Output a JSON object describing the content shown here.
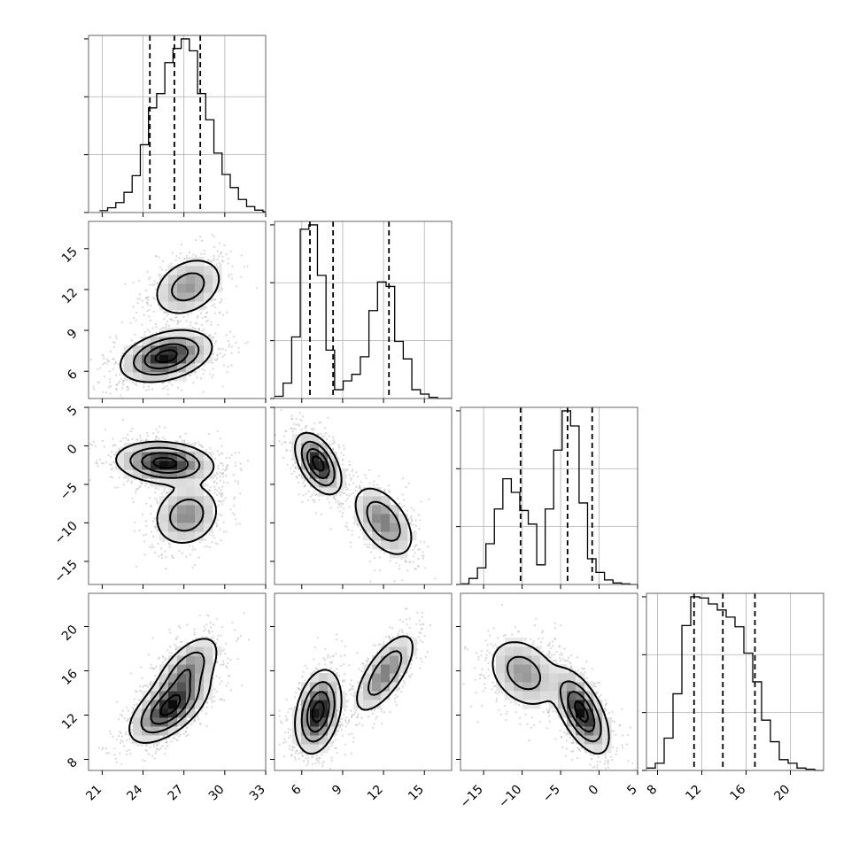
{
  "chart_data": {
    "type": "corner",
    "dimensions": [
      {
        "range": [
          20,
          33
        ],
        "ticks": [
          21,
          24,
          27,
          30,
          33
        ],
        "tick_labels": [
          "21",
          "24",
          "27",
          "30",
          "33"
        ],
        "quantiles": [
          24.5,
          26.3,
          28.2
        ],
        "hist": {
          "x0": 20.8,
          "dx": 0.6,
          "counts": [
            8,
            20,
            42,
            85,
            155,
            285,
            440,
            500,
            630,
            690,
            730,
            680,
            500,
            390,
            250,
            160,
            105,
            55,
            25,
            10,
            4
          ]
        }
      },
      {
        "range": [
          4,
          17
        ],
        "ticks": [
          6,
          9,
          12,
          15
        ],
        "tick_labels": [
          "6",
          "9",
          "12",
          "15"
        ],
        "quantiles": [
          6.6,
          8.3,
          12.4
        ],
        "hist": {
          "x0": 4.0,
          "dx": 0.63,
          "counts": [
            10,
            70,
            280,
            770,
            790,
            560,
            220,
            40,
            80,
            110,
            190,
            400,
            530,
            510,
            260,
            180,
            40,
            20,
            5,
            0,
            0
          ]
        }
      },
      {
        "range": [
          -18,
          5
        ],
        "ticks": [
          -15,
          -10,
          -5,
          0,
          5
        ],
        "tick_labels": [
          "−15",
          "−10",
          "−5",
          "0",
          "5"
        ],
        "quantiles": [
          -10.2,
          -4.1,
          -0.9
        ],
        "hist": {
          "x0": -18.0,
          "dx": 1.1,
          "counts": [
            2,
            20,
            55,
            135,
            250,
            350,
            305,
            245,
            200,
            65,
            250,
            445,
            575,
            525,
            270,
            85,
            40,
            15,
            5,
            2,
            0
          ]
        }
      },
      {
        "range": [
          7,
          23
        ],
        "ticks": [
          8,
          12,
          16,
          20
        ],
        "tick_labels": [
          "8",
          "12",
          "16",
          "20"
        ],
        "quantiles": [
          11.3,
          13.9,
          16.8
        ],
        "hist": {
          "x0": 7.0,
          "dx": 0.8,
          "counts": [
            10,
            30,
            135,
            320,
            605,
            725,
            720,
            695,
            670,
            640,
            600,
            490,
            370,
            210,
            120,
            45,
            30,
            10,
            5,
            0
          ]
        }
      }
    ],
    "pairs": [
      {
        "row": 1,
        "col": 0,
        "modes": [
          {
            "center": [
              25.7,
              7.1
            ],
            "sx": 1.6,
            "sy": 0.9,
            "rho": 0.35,
            "w": 1.0
          },
          {
            "center": [
              27.3,
              12.2
            ],
            "sx": 1.3,
            "sy": 1.1,
            "rho": 0.3,
            "w": 0.5
          }
        ]
      },
      {
        "row": 2,
        "col": 0,
        "modes": [
          {
            "center": [
              25.6,
              -2.2
            ],
            "sx": 1.7,
            "sy": 1.3,
            "rho": -0.15,
            "w": 1.0
          },
          {
            "center": [
              27.2,
              -9.0
            ],
            "sx": 1.2,
            "sy": 2.0,
            "rho": 0.15,
            "w": 0.55
          }
        ]
      },
      {
        "row": 2,
        "col": 1,
        "modes": [
          {
            "center": [
              7.2,
              -2.3
            ],
            "sx": 0.8,
            "sy": 1.9,
            "rho": -0.5,
            "w": 1.0
          },
          {
            "center": [
              12.0,
              -9.8
            ],
            "sx": 1.1,
            "sy": 2.3,
            "rho": -0.5,
            "w": 0.6
          }
        ]
      },
      {
        "row": 3,
        "col": 0,
        "modes": [
          {
            "center": [
              25.9,
              12.6
            ],
            "sx": 1.4,
            "sy": 1.5,
            "rho": 0.6,
            "w": 1.0
          },
          {
            "center": [
              27.2,
              16.0
            ],
            "sx": 1.2,
            "sy": 1.6,
            "rho": 0.6,
            "w": 0.6
          }
        ]
      },
      {
        "row": 3,
        "col": 1,
        "modes": [
          {
            "center": [
              7.2,
              12.3
            ],
            "sx": 0.8,
            "sy": 1.8,
            "rho": 0.3,
            "w": 1.0
          },
          {
            "center": [
              12.1,
              15.8
            ],
            "sx": 1.1,
            "sy": 1.8,
            "rho": 0.7,
            "w": 0.6
          }
        ]
      },
      {
        "row": 3,
        "col": 2,
        "modes": [
          {
            "center": [
              -2.3,
              12.3
            ],
            "sx": 1.7,
            "sy": 1.8,
            "rho": -0.6,
            "w": 1.0
          },
          {
            "center": [
              -9.8,
              15.8
            ],
            "sx": 2.3,
            "sy": 1.6,
            "rho": -0.3,
            "w": 0.5
          }
        ]
      }
    ]
  }
}
